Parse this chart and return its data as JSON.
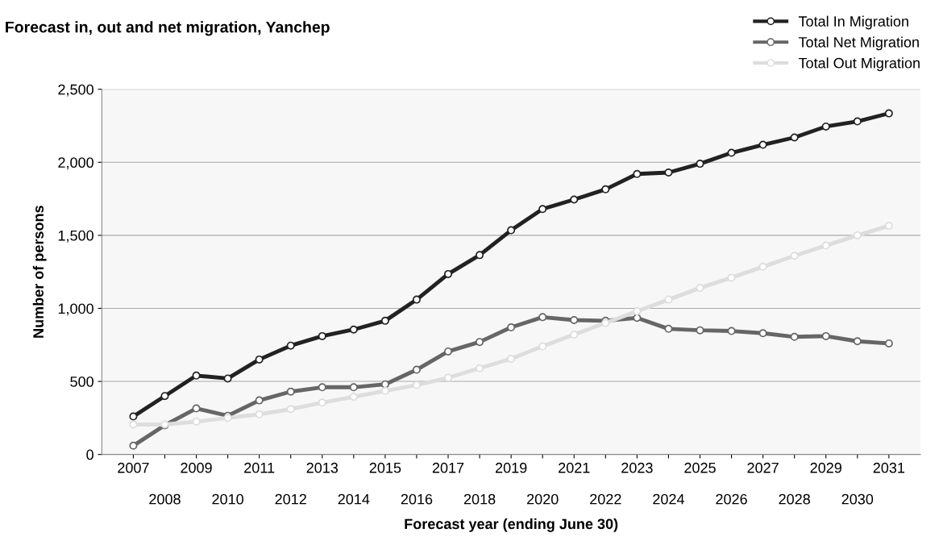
{
  "chart_data": {
    "type": "line",
    "title": "Forecast in, out and net migration, Yanchep",
    "xlabel": "Forecast year (ending June 30)",
    "ylabel": "Number of persons",
    "categories": [
      "2007",
      "2008",
      "2009",
      "2010",
      "2011",
      "2012",
      "2013",
      "2014",
      "2015",
      "2016",
      "2017",
      "2018",
      "2019",
      "2020",
      "2021",
      "2022",
      "2023",
      "2024",
      "2025",
      "2026",
      "2027",
      "2028",
      "2029",
      "2030",
      "2031"
    ],
    "series": [
      {
        "name": "Total In Migration",
        "color": "#222222",
        "values": [
          260,
          400,
          540,
          520,
          650,
          745,
          810,
          855,
          915,
          1060,
          1235,
          1365,
          1535,
          1680,
          1745,
          1815,
          1920,
          1930,
          1990,
          2065,
          2120,
          2170,
          2245,
          2280,
          2335
        ]
      },
      {
        "name": "Total Net Migration",
        "color": "#666666",
        "values": [
          60,
          200,
          315,
          265,
          370,
          430,
          460,
          460,
          480,
          580,
          705,
          770,
          870,
          940,
          920,
          915,
          935,
          860,
          850,
          845,
          830,
          805,
          810,
          775,
          760
        ]
      },
      {
        "name": "Total Out Migration",
        "color": "#dddddd",
        "values": [
          205,
          205,
          225,
          250,
          275,
          310,
          355,
          395,
          435,
          475,
          525,
          590,
          655,
          740,
          820,
          900,
          980,
          1060,
          1140,
          1210,
          1285,
          1360,
          1430,
          1500,
          1565
        ]
      }
    ],
    "ylim": [
      0,
      2500
    ],
    "yticks": [
      {
        "value": 0,
        "label": "0"
      },
      {
        "value": 500,
        "label": "500"
      },
      {
        "value": 1000,
        "label": "1,000"
      },
      {
        "value": 1500,
        "label": "1,500"
      },
      {
        "value": 2000,
        "label": "2,000"
      },
      {
        "value": 2500,
        "label": "2,500"
      }
    ],
    "grid": "y",
    "legend": "top right",
    "marker": "circle",
    "line_style": "solid"
  }
}
